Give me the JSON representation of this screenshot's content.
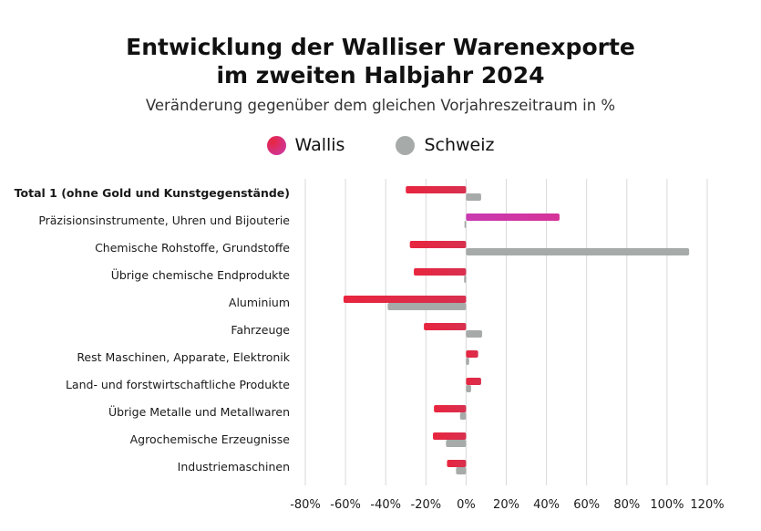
{
  "chart_data": {
    "type": "bar",
    "orientation": "horizontal",
    "title_line1": "Entwicklung der Walliser Warenexporte",
    "title_line2": "im zweiten Halbjahr 2024",
    "subtitle": "Veränderung gegenüber dem gleichen Vorjahreszeitraum in %",
    "xlim": [
      -80,
      120
    ],
    "x_ticks": [
      -80,
      -60,
      -40,
      -20,
      0,
      20,
      40,
      60,
      80,
      100,
      120
    ],
    "x_tick_labels": [
      "-80%",
      "-60%",
      "-40%",
      "-20%",
      "0%",
      "20%",
      "40%",
      "60%",
      "80%",
      "100%",
      "120%"
    ],
    "grid": "vertical",
    "legend_position": "top-center",
    "categories": [
      "Total 1 (ohne Gold und Kunstgegenstände)",
      "Präzisionsinstrumente, Uhren und Bijouterie",
      "Chemische Rohstoffe, Grundstoffe",
      "Übrige chemische Endprodukte",
      "Aluminium",
      "Fahrzeuge",
      "Rest Maschinen, Apparate, Elektronik",
      "Land- und forstwirtschaftliche Produkte",
      "Übrige Metalle und Metallwaren",
      "Agrochemische Erzeugnisse",
      "Industriemaschinen"
    ],
    "bold_category_index": 0,
    "series": [
      {
        "name": "Wallis",
        "color": "#e8253f",
        "color_highlight": "#c93ab1",
        "values": [
          -30,
          46.5,
          -28,
          -26,
          -61,
          -21,
          6,
          7.5,
          -16,
          -16.5,
          -9.5
        ]
      },
      {
        "name": "Schweiz",
        "color": "#a6aaa8",
        "values": [
          7.5,
          -0.8,
          111,
          -1,
          -39,
          8,
          1.5,
          2.5,
          -3,
          -10,
          -5
        ]
      }
    ]
  }
}
